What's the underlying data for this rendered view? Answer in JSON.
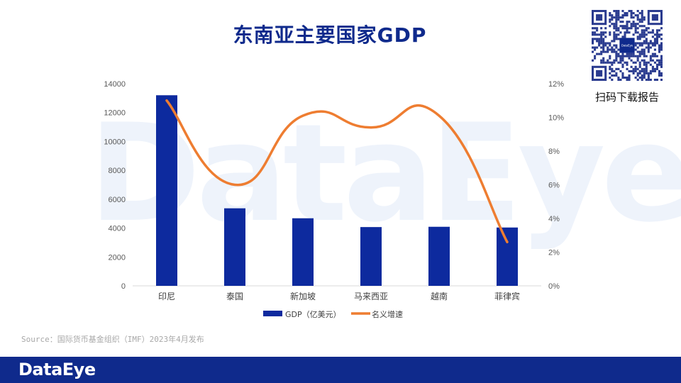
{
  "page": {
    "title": "东南亚主要国家GDP",
    "qr_caption": "扫码下载报告",
    "qr_logo_text": "DataEye",
    "watermark": "DataEye",
    "source": "Source：国际货币基金组织（IMF）2023年4月发布",
    "footer_logo": "DataEye"
  },
  "colors": {
    "bar": "#0d2a9e",
    "line": "#ee7d31",
    "title": "#0f2a8c",
    "footer": "#0f2a8c"
  },
  "chart_data": {
    "type": "bar",
    "title": "东南亚主要国家GDP",
    "categories": [
      "印尼",
      "泰国",
      "新加坡",
      "马来西亚",
      "越南",
      "菲律宾"
    ],
    "series": [
      {
        "name": "GDP（亿美元）",
        "type": "bar",
        "axis": "left",
        "values": [
          13200,
          5370,
          4680,
          4070,
          4090,
          4040
        ]
      },
      {
        "name": "名义增速",
        "type": "line",
        "axis": "right",
        "values": [
          11.0,
          6.0,
          10.1,
          9.4,
          10.1,
          2.6
        ]
      }
    ],
    "ylim": [
      0,
      14000
    ],
    "yticks": [
      0,
      2000,
      4000,
      6000,
      8000,
      10000,
      12000,
      14000
    ],
    "y2lim": [
      0,
      12
    ],
    "y2ticks": [
      "0%",
      "2%",
      "4%",
      "6%",
      "8%",
      "10%",
      "12%"
    ],
    "legend": "bottom",
    "grid": false
  }
}
